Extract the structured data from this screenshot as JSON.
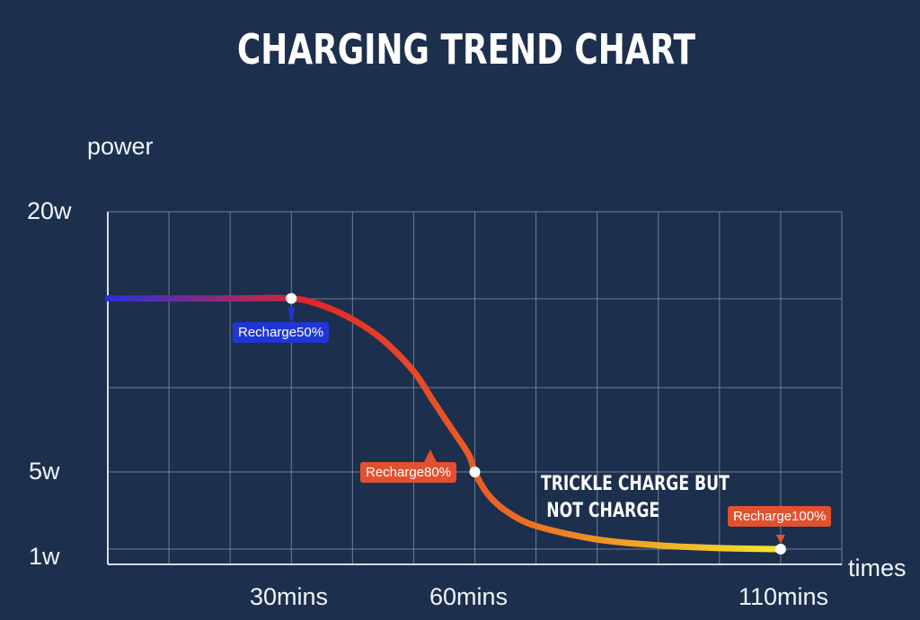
{
  "chart_data": {
    "type": "line",
    "title": "CHARGING TREND CHART",
    "ylabel": "power",
    "xlabel": "times",
    "ytick_labels": [
      {
        "value": 20,
        "label": "20w"
      },
      {
        "value": 5,
        "label": "5w"
      },
      {
        "value": 1,
        "label": "1w"
      }
    ],
    "xtick_labels": [
      {
        "value": 30,
        "label": "30mins"
      },
      {
        "value": 60,
        "label": "60mins"
      },
      {
        "value": 110,
        "label": "110mins"
      }
    ],
    "xlim": [
      0,
      120
    ],
    "ylim": [
      0,
      20
    ],
    "grid": true,
    "series": [
      {
        "x": [
          0,
          10,
          20,
          30,
          35,
          40,
          45,
          50,
          53,
          56,
          59,
          60,
          62,
          65,
          70,
          80,
          90,
          100,
          110
        ],
        "y": [
          15,
          15,
          15,
          15,
          14.6,
          13.8,
          12.6,
          10.8,
          9.2,
          7.6,
          6.0,
          5,
          3.9,
          3.0,
          2.2,
          1.5,
          1.2,
          1.05,
          1
        ]
      }
    ],
    "markers": [
      {
        "x": 30,
        "y": 15,
        "label": "Recharge50%",
        "color": "#1f36d6"
      },
      {
        "x": 60,
        "y": 5,
        "label": "Recharge80%",
        "color": "#e2512f"
      },
      {
        "x": 110,
        "y": 1,
        "label": "Recharge100%",
        "color": "#e2512f"
      }
    ],
    "annotations": [
      {
        "lines": [
          "TRICKLE CHARGE BUT",
          "NOT CHARGE"
        ]
      }
    ],
    "gradient": [
      "#2a2fd8",
      "#e2262a",
      "#ea6a22",
      "#f5e62a"
    ]
  }
}
